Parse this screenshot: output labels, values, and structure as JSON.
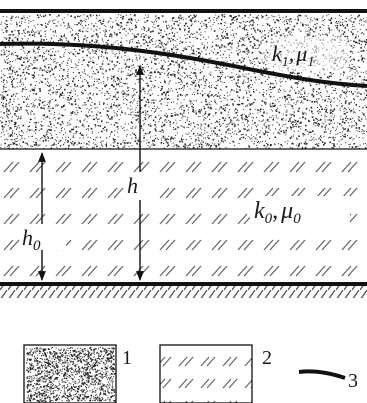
{
  "upper_layer": {
    "label_k1": "k",
    "label_k1_sub": "1",
    "label_comma": ",",
    "label_mu1": "μ",
    "label_mu1_sub": "1"
  },
  "lower_layer": {
    "label_k0": "k",
    "label_k0_sub": "0",
    "label_comma": ",",
    "label_mu0": "μ",
    "label_mu0_sub": "0"
  },
  "dimensions": {
    "h0_main": "h",
    "h0_sub": "0",
    "h_main": "h"
  },
  "legend": {
    "item1_number": "1",
    "item2_number": "2",
    "item3_number": "3"
  },
  "colors": {
    "line": "#111111",
    "speckle": "#2a2a2a",
    "hatch": "#555555",
    "background": "#ffffff"
  }
}
